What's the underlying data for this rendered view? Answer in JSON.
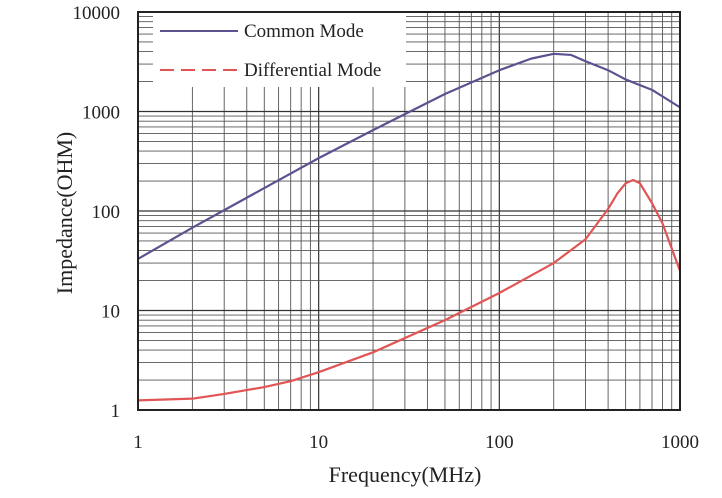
{
  "chart_data": {
    "type": "line",
    "title": "",
    "xlabel": "Frequency(MHz)",
    "ylabel": "Impedance(OHM)",
    "xscale": "log",
    "yscale": "log",
    "xlim": [
      1,
      1000
    ],
    "ylim": [
      1,
      10000
    ],
    "grid": true,
    "legend_position": "top-left",
    "x_tick_labels": [
      "1",
      "10",
      "100",
      "1000"
    ],
    "y_tick_labels": [
      "1",
      "10",
      "100",
      "1000",
      "10000"
    ],
    "series": [
      {
        "name": "Common Mode",
        "color": "#5b5390",
        "style": "solid",
        "points": [
          [
            1,
            33
          ],
          [
            2,
            68
          ],
          [
            5,
            170
          ],
          [
            10,
            340
          ],
          [
            20,
            650
          ],
          [
            50,
            1500
          ],
          [
            100,
            2600
          ],
          [
            150,
            3400
          ],
          [
            200,
            3800
          ],
          [
            250,
            3700
          ],
          [
            300,
            3200
          ],
          [
            400,
            2600
          ],
          [
            500,
            2100
          ],
          [
            700,
            1650
          ],
          [
            1000,
            1100
          ]
        ]
      },
      {
        "name": "Differential Mode",
        "color": "#e15555",
        "style": "solid",
        "points": [
          [
            1,
            1.25
          ],
          [
            2,
            1.3
          ],
          [
            3,
            1.45
          ],
          [
            5,
            1.7
          ],
          [
            7,
            1.95
          ],
          [
            10,
            2.4
          ],
          [
            20,
            3.8
          ],
          [
            50,
            8
          ],
          [
            100,
            15
          ],
          [
            200,
            30
          ],
          [
            300,
            52
          ],
          [
            400,
            105
          ],
          [
            450,
            150
          ],
          [
            500,
            190
          ],
          [
            550,
            205
          ],
          [
            600,
            190
          ],
          [
            700,
            120
          ],
          [
            800,
            75
          ],
          [
            1000,
            25
          ]
        ]
      }
    ]
  }
}
